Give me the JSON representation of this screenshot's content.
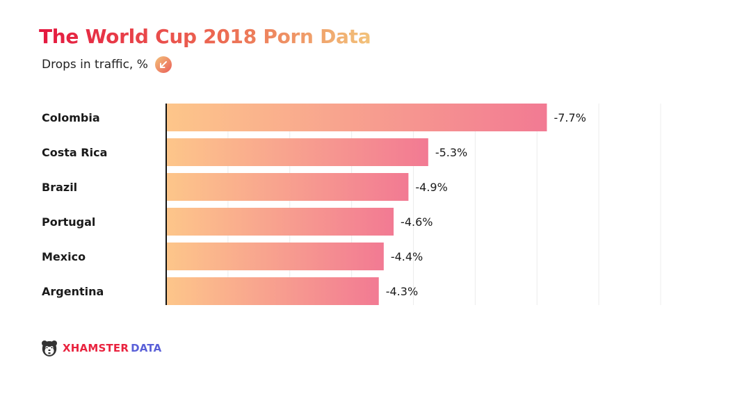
{
  "header": {
    "title": "The World Cup 2018 Porn Data",
    "subtitle": "Drops in traffic, %"
  },
  "chart_data": {
    "type": "bar",
    "orientation": "horizontal",
    "title": "The World Cup 2018 Porn Data",
    "subtitle": "Drops in traffic, %",
    "categories": [
      "Colombia",
      "Costa Rica",
      "Brazil",
      "Portugal",
      "Mexico",
      "Argentina"
    ],
    "values": [
      -7.7,
      -5.3,
      -4.9,
      -4.6,
      -4.4,
      -4.3
    ],
    "data_labels": [
      "-7.7%",
      "-5.3%",
      "-4.9%",
      "-4.6%",
      "-4.4%",
      "-4.3%"
    ],
    "xlim": [
      0,
      -10
    ],
    "grid": true,
    "legend": "none",
    "colors": {
      "bar_start": "#fdc68a",
      "bar_end": "#f27a93"
    }
  },
  "brand": {
    "part1": "XHAMSTER",
    "part2": "DATA",
    "icon": "hamster-logo-icon"
  }
}
